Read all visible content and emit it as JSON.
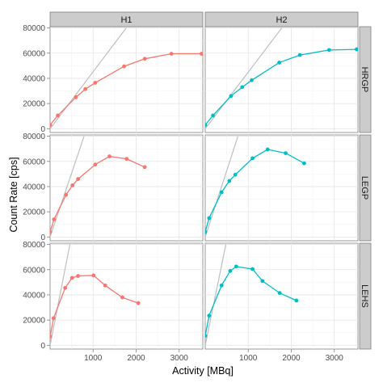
{
  "chart_data": {
    "type": "line",
    "xlabel": "Activity [MBq]",
    "ylabel": "Count Rate [cps]",
    "xlim": [
      0,
      3550
    ],
    "ylim": [
      -3000,
      81000
    ],
    "x_ticks": [
      1000,
      2000,
      3000
    ],
    "y_ticks": [
      0,
      20000,
      40000,
      60000,
      80000
    ],
    "grid": true,
    "legend": "none",
    "columns": [
      "H1",
      "H2"
    ],
    "rows": [
      "HRGP",
      "LEGP",
      "LEHS"
    ],
    "column_colors": {
      "H1": "#f8766d",
      "H2": "#00bfc4"
    },
    "reference_line_color": "#bebebe",
    "panels": [
      {
        "column": "H1",
        "row": "HRGP",
        "reference_line": [
          [
            0,
            0
          ],
          [
            1770,
            80000
          ]
        ],
        "x": [
          0,
          180,
          600,
          820,
          1050,
          1720,
          2200,
          2820,
          3520
        ],
        "y": [
          3000,
          10500,
          25000,
          31500,
          36500,
          49500,
          55500,
          59500,
          59500
        ]
      },
      {
        "column": "H2",
        "row": "HRGP",
        "reference_line": [
          [
            0,
            0
          ],
          [
            1780,
            80000
          ]
        ],
        "x": [
          0,
          180,
          600,
          860,
          1080,
          1720,
          2200,
          2880,
          3520
        ],
        "y": [
          3000,
          10500,
          26000,
          33000,
          38500,
          52500,
          58500,
          62500,
          63000
        ]
      },
      {
        "column": "H1",
        "row": "LEGP",
        "reference_line": [
          [
            0,
            0
          ],
          [
            790,
            80000
          ]
        ],
        "x": [
          0,
          90,
          370,
          520,
          650,
          1050,
          1380,
          1780,
          2200
        ],
        "y": [
          4000,
          14000,
          33500,
          41000,
          46000,
          57500,
          64000,
          62000,
          55500
        ]
      },
      {
        "column": "H2",
        "row": "LEGP",
        "reference_line": [
          [
            0,
            0
          ],
          [
            760,
            80000
          ]
        ],
        "x": [
          0,
          90,
          380,
          560,
          700,
          1100,
          1450,
          1870,
          2300
        ],
        "y": [
          4000,
          15000,
          35500,
          44500,
          49500,
          62500,
          69500,
          66500,
          58500
        ]
      },
      {
        "column": "H1",
        "row": "LEHS",
        "reference_line": [
          [
            0,
            0
          ],
          [
            460,
            80000
          ]
        ],
        "x": [
          0,
          80,
          350,
          510,
          650,
          1010,
          1280,
          1680,
          2050
        ],
        "y": [
          7000,
          21500,
          45500,
          53500,
          55000,
          55500,
          47500,
          38000,
          33500
        ]
      },
      {
        "column": "H2",
        "row": "LEHS",
        "reference_line": [
          [
            0,
            0
          ],
          [
            480,
            80000
          ]
        ],
        "x": [
          0,
          90,
          380,
          580,
          720,
          1100,
          1330,
          1730,
          2120
        ],
        "y": [
          7500,
          23500,
          47500,
          59000,
          62500,
          60500,
          51000,
          41500,
          35500
        ]
      }
    ]
  }
}
